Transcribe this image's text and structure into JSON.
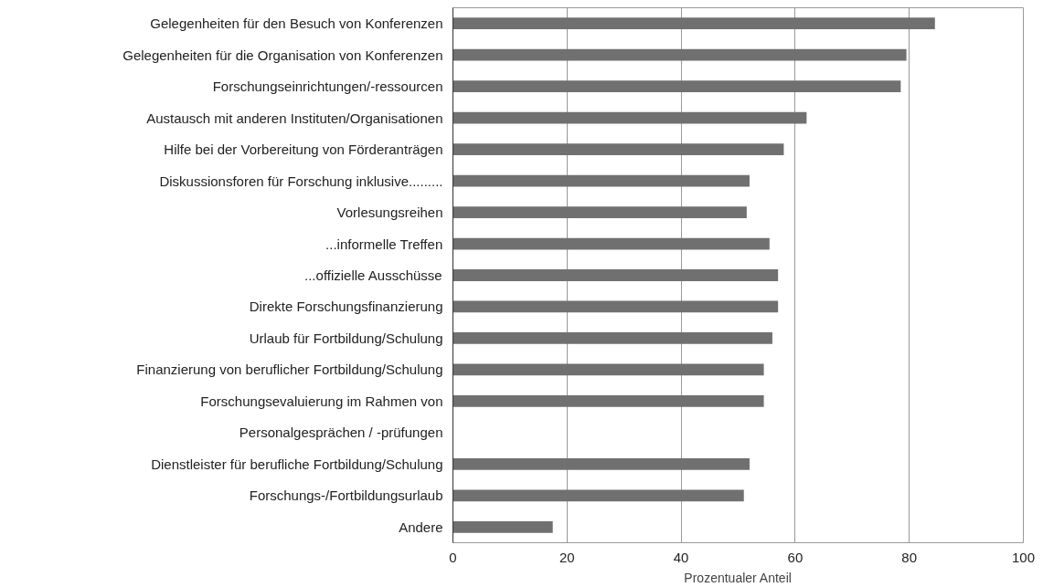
{
  "chart_data": {
    "type": "bar",
    "orientation": "horizontal",
    "xlabel": "Prozentualer Anteil",
    "categories": [
      "Gelegenheiten für den Besuch von Konferenzen",
      "Gelegenheiten für die Organisation von Konferenzen",
      "Forschungseinrichtungen/-ressourcen",
      "Austausch mit anderen Instituten/Organisationen",
      "Hilfe bei der Vorbereitung von Förderanträgen",
      "Diskussionsforen für Forschung inklusive.........",
      "Vorlesungsreihen",
      "...informelle Treffen",
      "...offizielle Ausschüsse",
      "Direkte Forschungsfinanzierung",
      "Urlaub für Fortbildung/Schulung",
      "Finanzierung von beruflicher Fortbildung/Schulung",
      "Forschungsevaluierung im Rahmen von",
      "Personalgesprächen / -prüfungen",
      "Dienstleister für berufliche Fortbildung/Schulung",
      "Forschungs-/Fortbildungsurlaub",
      "Andere"
    ],
    "values": [
      84.5,
      79.5,
      78.5,
      62,
      58,
      52,
      51.5,
      55.5,
      57,
      57,
      56,
      54.5,
      54.5,
      null,
      52,
      51,
      17.5
    ],
    "color": "#707070",
    "xlim": [
      0,
      100
    ],
    "xticks": [
      0,
      20,
      40,
      60,
      80,
      100
    ],
    "grid": "x"
  }
}
